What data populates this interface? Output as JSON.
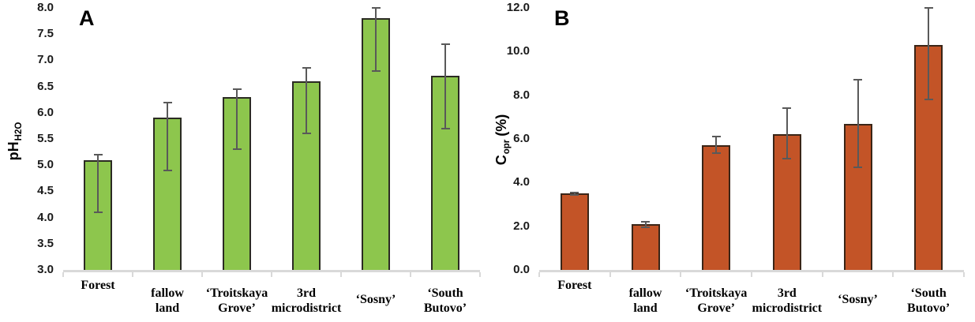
{
  "figure": {
    "background": "#FFFFFF",
    "error_bar_color": "#595959",
    "axis_line_color": "#D9D9D9",
    "text_color": "#1A1A1A"
  },
  "chart_data": [
    {
      "type": "bar",
      "panel_label": "A",
      "title": "",
      "xlabel": "",
      "ylabel": {
        "main": "pH",
        "sub": "H2O",
        "suffix": ""
      },
      "ylabel_text": "pH H2O",
      "ylim": [
        3.0,
        8.0
      ],
      "ytick_step": 0.5,
      "ytick_labels": [
        "8.0",
        "7.5",
        "7.0",
        "6.5",
        "6.0",
        "5.5",
        "5.0",
        "4.5",
        "4.0",
        "3.5",
        "3.0"
      ],
      "grid": false,
      "legend": false,
      "bar_color": "#8DC64D",
      "bar_border_color": "#2B2B23",
      "categories": [
        "Forest",
        "fallow land",
        "‘Troitskaya Grove’",
        "3rd microdistrict",
        "‘Sosny’",
        "‘South Butovo’"
      ],
      "category_lines": [
        [
          "Forest"
        ],
        [
          "fallow",
          "land"
        ],
        [
          "‘Troitskaya",
          "Grove’"
        ],
        [
          "3rd",
          "microdistrict"
        ],
        [
          "‘Sosny’"
        ],
        [
          "‘South",
          "Butovo’"
        ]
      ],
      "values": [
        5.1,
        5.9,
        6.3,
        6.6,
        7.8,
        6.7
      ],
      "error_low": [
        4.1,
        4.9,
        5.3,
        5.6,
        6.8,
        5.7
      ],
      "error_high": [
        5.2,
        6.2,
        6.45,
        6.85,
        8.0,
        7.3
      ]
    },
    {
      "type": "bar",
      "panel_label": "B",
      "title": "",
      "xlabel": "",
      "ylabel": {
        "main": "C",
        "sub": "opr",
        "suffix": "(%)"
      },
      "ylabel_text": "C opr (%)",
      "ylim": [
        0.0,
        12.0
      ],
      "ytick_step": 2.0,
      "ytick_labels": [
        "12.0",
        "10.0",
        "8.0",
        "6.0",
        "4.0",
        "2.0",
        "0.0"
      ],
      "grid": false,
      "legend": false,
      "bar_color": "#C35427",
      "bar_border_color": "#3A2517",
      "categories": [
        "Forest",
        "fallow land",
        "‘Troitskaya Grove’",
        "3rd microdistrict",
        "‘Sosny’",
        "‘South Butovo’"
      ],
      "category_lines": [
        [
          "Forest"
        ],
        [
          "fallow",
          "land"
        ],
        [
          "‘Troitskaya",
          "Grove’"
        ],
        [
          "3rd",
          "microdistrict"
        ],
        [
          "‘Sosny’"
        ],
        [
          "‘South",
          "Butovo’"
        ]
      ],
      "values": [
        3.5,
        2.1,
        5.7,
        6.2,
        6.7,
        10.3
      ],
      "error_low": [
        3.45,
        1.95,
        5.35,
        5.1,
        4.7,
        7.8
      ],
      "error_high": [
        3.55,
        2.2,
        6.1,
        7.4,
        8.7,
        12.0
      ]
    }
  ]
}
